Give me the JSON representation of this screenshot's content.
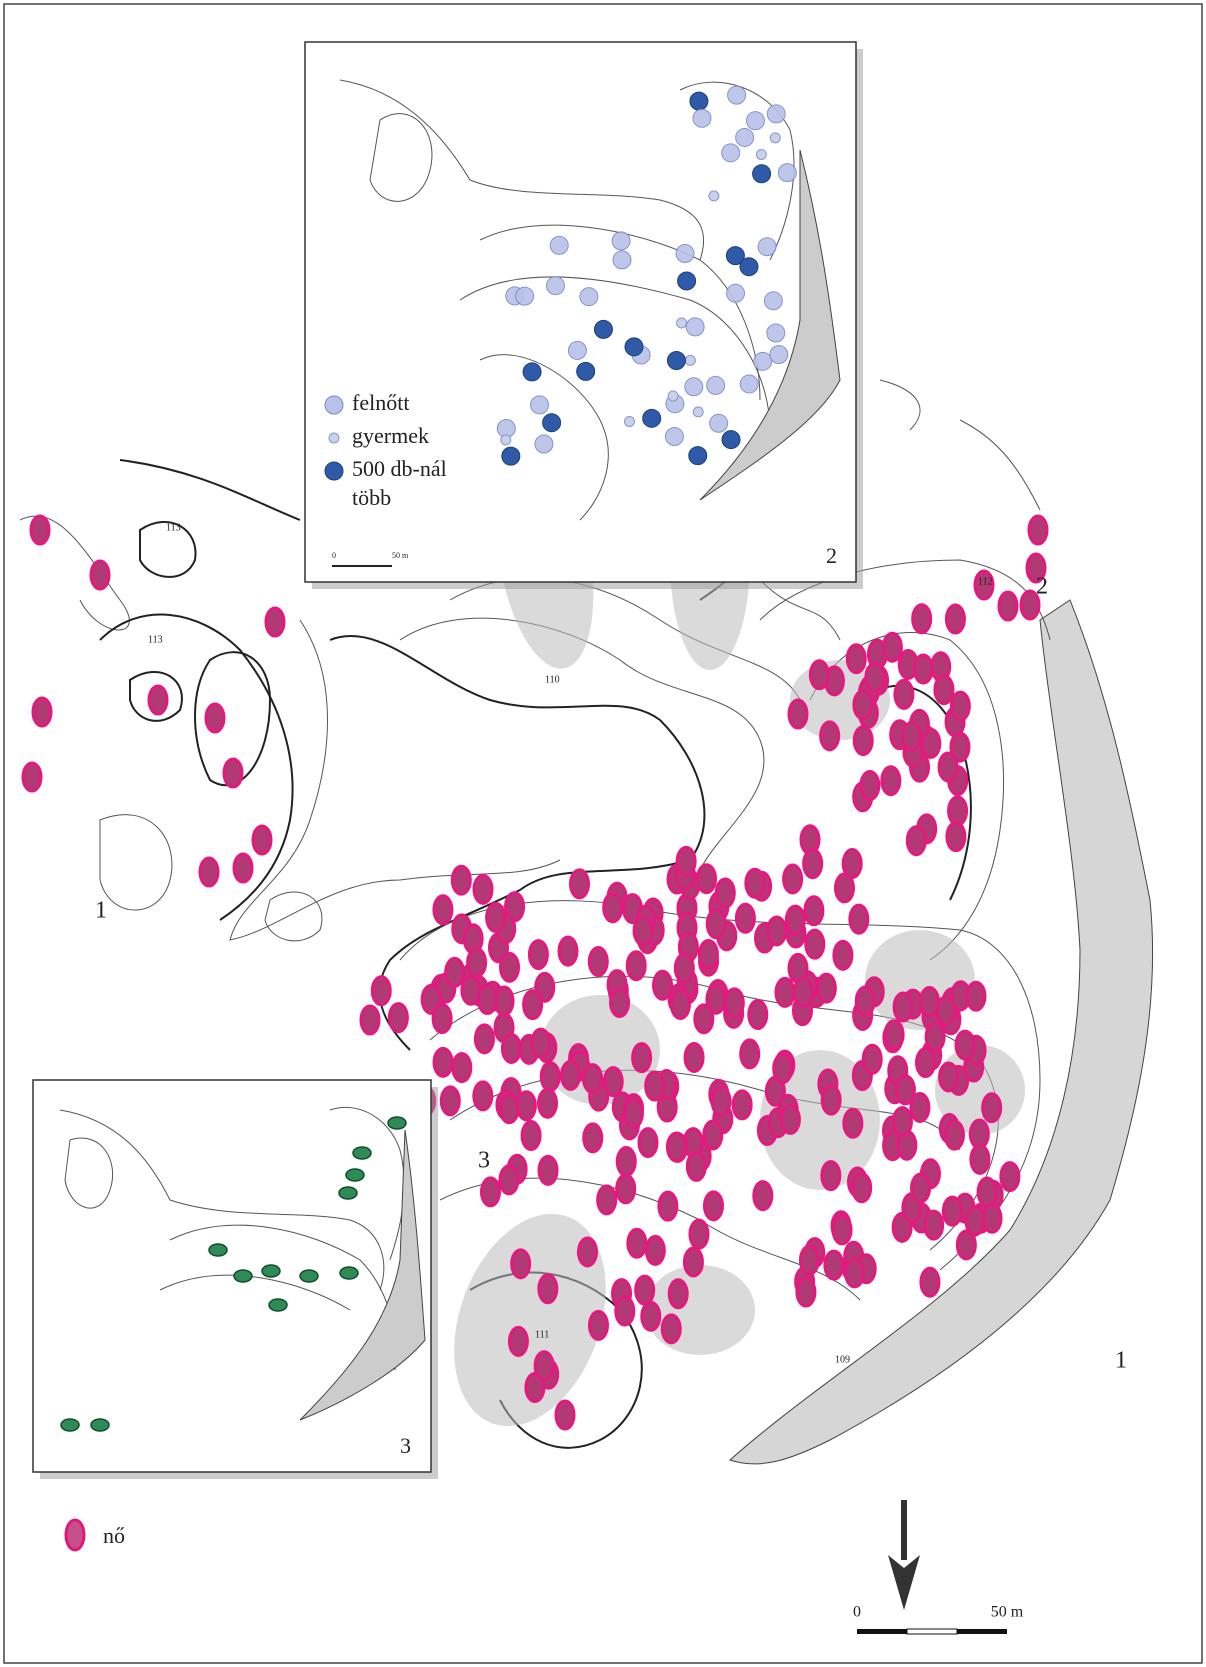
{
  "main_map": {
    "area_labels": [
      "1",
      "2",
      "3",
      "1"
    ],
    "contour_labels": [
      "113",
      "113",
      "110",
      "112",
      "111",
      "109"
    ],
    "legend": {
      "female": "nő"
    },
    "scale": {
      "start": "0",
      "end": "50 m"
    }
  },
  "inset_2": {
    "label": "2",
    "legend": {
      "adult": "felnőtt",
      "child": "gyermek",
      "many_line1": "500 db-nál",
      "many_line2": "több"
    },
    "scale": {
      "start": "0",
      "end": "50 m"
    }
  },
  "inset_3": {
    "label": "3"
  }
}
